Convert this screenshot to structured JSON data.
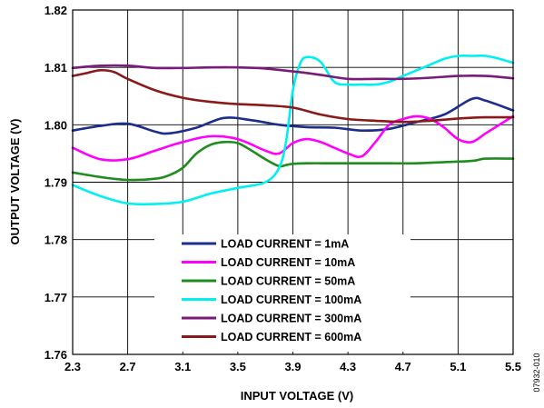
{
  "figure_id": "07932-010",
  "chart_data": {
    "type": "line",
    "title": "",
    "xlabel": "INPUT VOLTAGE (V)",
    "ylabel": "OUTPUT VOLTAGE (V)",
    "xlim": [
      2.3,
      5.5
    ],
    "ylim": [
      1.76,
      1.82
    ],
    "xticks": [
      "2.3",
      "2.7",
      "3.1",
      "3.5",
      "3.9",
      "4.3",
      "4.7",
      "5.1",
      "5.5"
    ],
    "yticks": [
      "1.76",
      "1.77",
      "1.78",
      "1.79",
      "1.80",
      "1.81",
      "1.82"
    ],
    "grid": true,
    "legend_position": "bottom-center",
    "series": [
      {
        "name": "LOAD CURRENT = 1mA",
        "color": "#1c2d8c",
        "x": [
          2.3,
          2.5,
          2.7,
          2.9,
          3.0,
          3.2,
          3.4,
          3.6,
          3.8,
          4.0,
          4.2,
          4.4,
          4.6,
          4.8,
          5.0,
          5.2,
          5.3,
          5.5
        ],
        "y": [
          1.799,
          1.7998,
          1.8002,
          1.7988,
          1.7985,
          1.7995,
          1.8012,
          1.8008,
          1.8,
          1.7996,
          1.7995,
          1.799,
          1.7993,
          1.8005,
          1.8018,
          1.8045,
          1.8042,
          1.8025
        ]
      },
      {
        "name": "LOAD CURRENT = 10mA",
        "color": "#ff00ff",
        "x": [
          2.3,
          2.5,
          2.7,
          2.9,
          3.1,
          3.3,
          3.5,
          3.7,
          3.8,
          3.9,
          4.0,
          4.1,
          4.2,
          4.3,
          4.4,
          4.5,
          4.6,
          4.7,
          4.8,
          4.9,
          5.0,
          5.1,
          5.2,
          5.3,
          5.4,
          5.5
        ],
        "y": [
          1.796,
          1.794,
          1.794,
          1.7955,
          1.797,
          1.798,
          1.7975,
          1.7955,
          1.795,
          1.7968,
          1.7975,
          1.797,
          1.796,
          1.795,
          1.7945,
          1.797,
          1.8,
          1.801,
          1.8015,
          1.801,
          1.7995,
          1.7975,
          1.797,
          1.7985,
          1.8,
          1.8015
        ]
      },
      {
        "name": "LOAD CURRENT = 50mA",
        "color": "#1e8c1e",
        "x": [
          2.3,
          2.5,
          2.7,
          2.9,
          3.0,
          3.1,
          3.2,
          3.3,
          3.4,
          3.5,
          3.6,
          3.7,
          3.8,
          3.85,
          3.9,
          4.0,
          4.2,
          4.4,
          4.6,
          4.8,
          5.0,
          5.2,
          5.3,
          5.5
        ],
        "y": [
          1.7917,
          1.7909,
          1.7904,
          1.7906,
          1.7912,
          1.7925,
          1.795,
          1.7965,
          1.797,
          1.7968,
          1.7955,
          1.794,
          1.7928,
          1.793,
          1.7932,
          1.7933,
          1.7933,
          1.7933,
          1.7933,
          1.7933,
          1.7935,
          1.7937,
          1.7941,
          1.7941
        ]
      },
      {
        "name": "LOAD CURRENT = 100mA",
        "color": "#00f0f0",
        "x": [
          2.3,
          2.5,
          2.7,
          2.9,
          3.1,
          3.3,
          3.5,
          3.7,
          3.8,
          3.85,
          3.9,
          3.95,
          4.0,
          4.1,
          4.2,
          4.3,
          4.4,
          4.5,
          4.6,
          4.7,
          4.8,
          4.9,
          5.0,
          5.1,
          5.2,
          5.3,
          5.4,
          5.5
        ],
        "y": [
          1.7895,
          1.7876,
          1.7863,
          1.7862,
          1.7866,
          1.788,
          1.789,
          1.79,
          1.7925,
          1.797,
          1.806,
          1.8105,
          1.8118,
          1.811,
          1.8075,
          1.807,
          1.807,
          1.807,
          1.8075,
          1.8085,
          1.8095,
          1.8105,
          1.8115,
          1.812,
          1.812,
          1.812,
          1.8115,
          1.8108
        ]
      },
      {
        "name": "LOAD CURRENT = 300mA",
        "color": "#7a1a7a",
        "x": [
          2.3,
          2.5,
          2.7,
          2.9,
          3.1,
          3.3,
          3.5,
          3.7,
          3.9,
          4.1,
          4.3,
          4.5,
          4.7,
          4.9,
          5.1,
          5.3,
          5.5
        ],
        "y": [
          1.8099,
          1.8103,
          1.8103,
          1.8099,
          1.8099,
          1.81,
          1.81,
          1.8098,
          1.8093,
          1.8087,
          1.808,
          1.808,
          1.808,
          1.8082,
          1.8085,
          1.8085,
          1.8081
        ]
      },
      {
        "name": "LOAD CURRENT = 600mA",
        "color": "#8a1a1a",
        "x": [
          2.3,
          2.4,
          2.5,
          2.6,
          2.7,
          2.9,
          3.1,
          3.3,
          3.5,
          3.7,
          3.9,
          4.1,
          4.3,
          4.5,
          4.7,
          4.9,
          5.1,
          5.3,
          5.5
        ],
        "y": [
          1.8085,
          1.809,
          1.8095,
          1.8092,
          1.808,
          1.806,
          1.8047,
          1.804,
          1.8036,
          1.8034,
          1.803,
          1.8018,
          1.801,
          1.8007,
          1.8005,
          1.8007,
          1.8011,
          1.8013,
          1.8013
        ]
      }
    ]
  }
}
